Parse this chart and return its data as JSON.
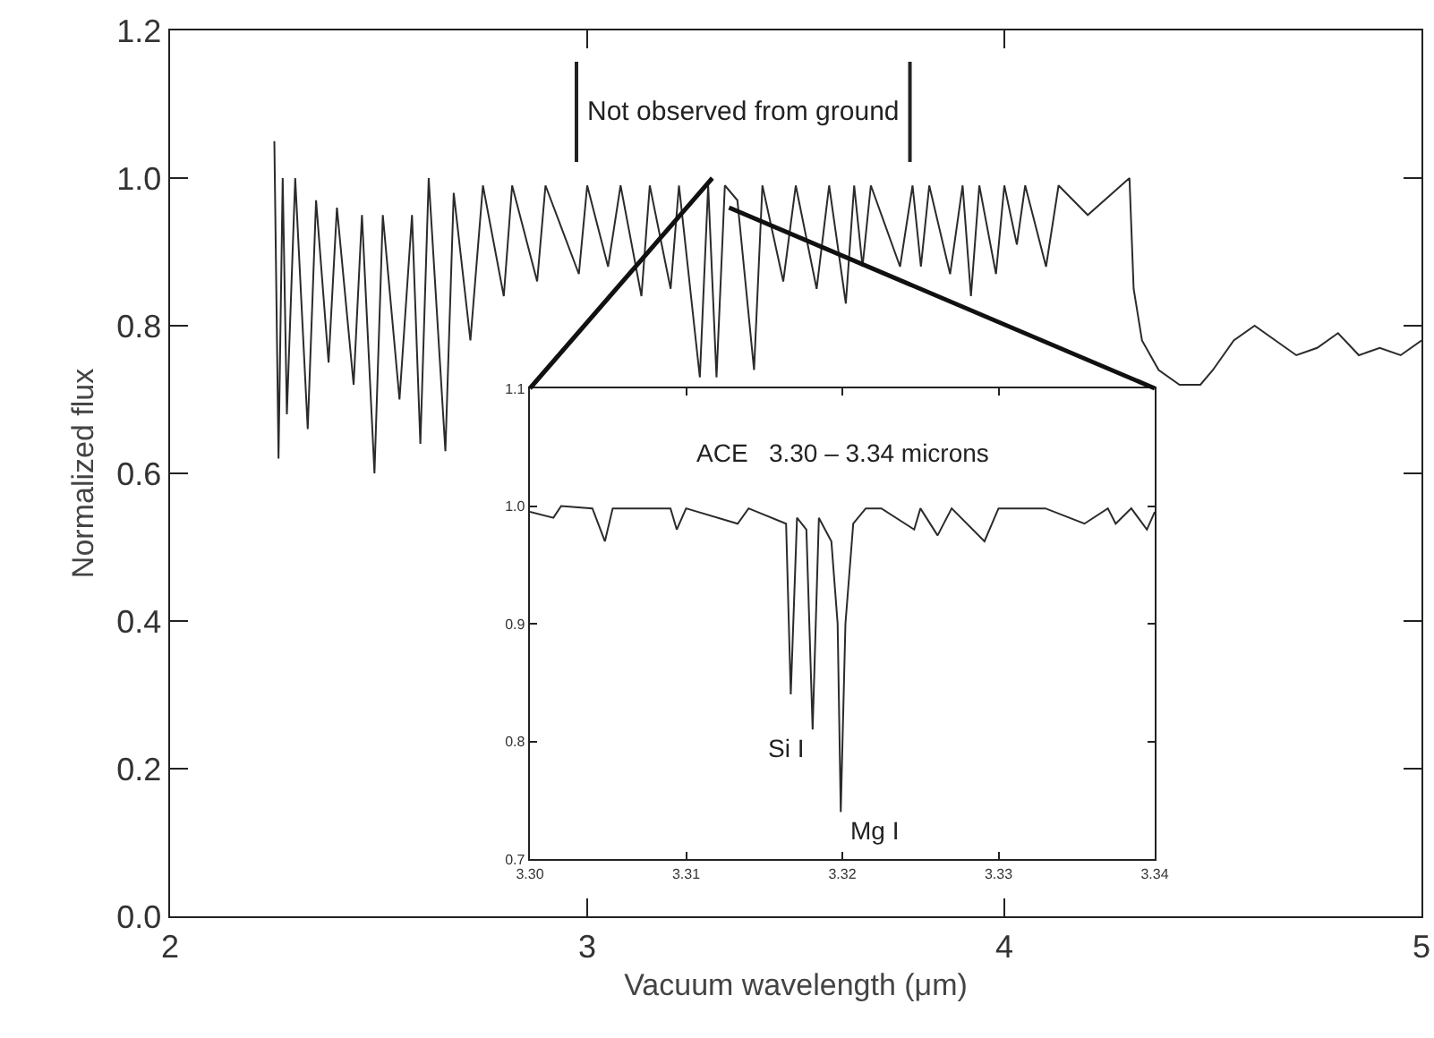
{
  "chart_data": [
    {
      "type": "line",
      "xlabel": "Vacuum wavelength (μm)",
      "ylabel": "Normalized flux",
      "xlim": [
        2,
        5
      ],
      "ylim": [
        0,
        1.2
      ],
      "xticks": [
        2,
        3,
        4,
        5
      ],
      "yticks": [
        {
          "value": 0,
          "label": "0.0"
        },
        {
          "value": 0.2,
          "label": "0.2"
        },
        {
          "value": 0.4,
          "label": "0.4"
        },
        {
          "value": 0.6,
          "label": "0.6"
        },
        {
          "value": 0.8,
          "label": "0.8"
        },
        {
          "value": 1,
          "label": "1.0"
        },
        {
          "value": 1.2,
          "label": "1.2"
        }
      ],
      "grid": false,
      "annotations": [
        "Not observed from ground"
      ],
      "series": [
        {
          "color": "#2b2b2b",
          "x": [
            2.25,
            2.26,
            2.27,
            2.28,
            2.3,
            2.33,
            2.35,
            2.38,
            2.4,
            2.44,
            2.46,
            2.49,
            2.51,
            2.55,
            2.58,
            2.6,
            2.62,
            2.66,
            2.68,
            2.72,
            2.75,
            2.8,
            2.82,
            2.88,
            2.9,
            2.98,
            3.0,
            3.05,
            3.08,
            3.13,
            3.15,
            3.2,
            3.22,
            3.27,
            3.29,
            3.31,
            3.33,
            3.36,
            3.4,
            3.42,
            3.47,
            3.5,
            3.55,
            3.58,
            3.62,
            3.64,
            3.66,
            3.68,
            3.75,
            3.78,
            3.8,
            3.82,
            3.87,
            3.9,
            3.92,
            3.94,
            3.98,
            4.0,
            4.03,
            4.05,
            4.1,
            4.13,
            4.2,
            4.28,
            4.3,
            4.31,
            4.33,
            4.37,
            4.42,
            4.47,
            4.5,
            4.55,
            4.6,
            4.65,
            4.7,
            4.75,
            4.8,
            4.85,
            4.9,
            4.95,
            5.0
          ],
          "values": [
            1.05,
            0.62,
            1.0,
            0.68,
            1.0,
            0.66,
            0.97,
            0.75,
            0.96,
            0.72,
            0.95,
            0.6,
            0.95,
            0.7,
            0.95,
            0.64,
            1.0,
            0.63,
            0.98,
            0.78,
            0.99,
            0.84,
            0.99,
            0.86,
            0.99,
            0.87,
            0.99,
            0.88,
            0.99,
            0.84,
            0.99,
            0.85,
            0.99,
            0.73,
            0.99,
            0.73,
            0.99,
            0.97,
            0.74,
            0.99,
            0.86,
            0.99,
            0.85,
            0.99,
            0.83,
            0.99,
            0.88,
            0.99,
            0.88,
            0.99,
            0.88,
            0.99,
            0.87,
            0.99,
            0.84,
            0.99,
            0.87,
            0.99,
            0.91,
            0.99,
            0.88,
            0.99,
            0.95,
            0.99,
            1.0,
            0.85,
            0.78,
            0.74,
            0.72,
            0.72,
            0.74,
            0.78,
            0.8,
            0.78,
            0.76,
            0.77,
            0.79,
            0.76,
            0.77,
            0.76,
            0.78
          ]
        }
      ]
    },
    {
      "type": "line",
      "title": "ACE   3.30 – 3.34 microns",
      "xlim": [
        3.3,
        3.34
      ],
      "ylim": [
        0.7,
        1.1
      ],
      "xticks": [
        {
          "value": 3.3,
          "label": "3.30"
        },
        {
          "value": 3.31,
          "label": "3.31"
        },
        {
          "value": 3.32,
          "label": "3.32"
        },
        {
          "value": 3.33,
          "label": "3.33"
        },
        {
          "value": 3.34,
          "label": "3.34"
        }
      ],
      "yticks": [
        {
          "value": 0.7,
          "label": "0.7"
        },
        {
          "value": 0.8,
          "label": "0.8"
        },
        {
          "value": 0.9,
          "label": "0.9"
        },
        {
          "value": 1.0,
          "label": "1.0"
        },
        {
          "value": 1.1,
          "label": "1.1"
        }
      ],
      "grid": false,
      "annotations": [
        {
          "text": "Si I",
          "x": 3.3178,
          "y": 0.81
        },
        {
          "text": "Mg I",
          "x": 3.3203,
          "y": 0.74
        }
      ],
      "series": [
        {
          "color": "#2b2b2b",
          "x": [
            3.3,
            3.3015,
            3.302,
            3.304,
            3.3048,
            3.3053,
            3.309,
            3.3094,
            3.31,
            3.3133,
            3.314,
            3.3164,
            3.3167,
            3.3171,
            3.3177,
            3.3181,
            3.3185,
            3.3193,
            3.3197,
            3.3199,
            3.3202,
            3.3207,
            3.3215,
            3.3225,
            3.3246,
            3.325,
            3.3261,
            3.327,
            3.3291,
            3.33,
            3.333,
            3.3355,
            3.337,
            3.3375,
            3.3385,
            3.3395,
            3.34
          ],
          "values": [
            0.995,
            0.99,
            1.0,
            0.998,
            0.97,
            0.998,
            0.998,
            0.98,
            0.998,
            0.985,
            0.998,
            0.985,
            0.84,
            0.99,
            0.98,
            0.81,
            0.99,
            0.97,
            0.9,
            0.74,
            0.9,
            0.985,
            0.998,
            0.998,
            0.98,
            0.998,
            0.975,
            0.998,
            0.97,
            0.998,
            0.998,
            0.985,
            0.998,
            0.985,
            0.998,
            0.98,
            0.995
          ]
        }
      ]
    }
  ]
}
